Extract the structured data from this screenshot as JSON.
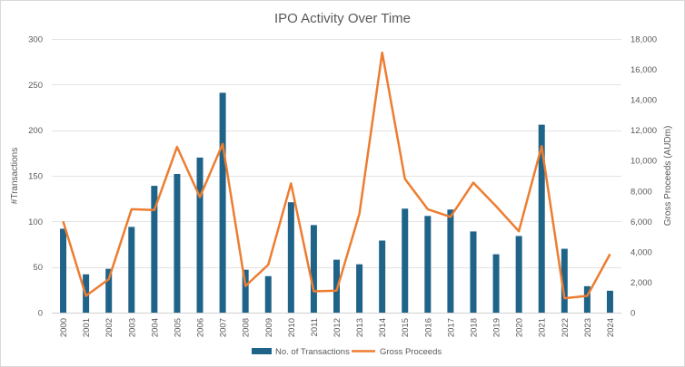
{
  "chart_data": {
    "type": "bar+line",
    "title": "IPO Activity Over Time",
    "categories": [
      "2000",
      "2001",
      "2002",
      "2003",
      "2004",
      "2005",
      "2006",
      "2007",
      "2008",
      "2009",
      "2010",
      "2011",
      "2012",
      "2013",
      "2014",
      "2015",
      "2016",
      "2017",
      "2018",
      "2019",
      "2020",
      "2021",
      "2022",
      "2023",
      "2024"
    ],
    "series": [
      {
        "name": "No. of Transactions",
        "type": "bar",
        "axis": "left",
        "color": "#1f6389",
        "values": [
          92,
          42,
          48,
          94,
          139,
          152,
          170,
          241,
          47,
          40,
          121,
          96,
          58,
          53,
          79,
          114,
          106,
          113,
          89,
          64,
          84,
          206,
          70,
          29,
          24
        ]
      },
      {
        "name": "Gross Proceeds",
        "type": "line",
        "axis": "right",
        "color": "#ed7d31",
        "values": [
          6000,
          1100,
          2200,
          6800,
          6750,
          10900,
          7600,
          11100,
          1750,
          3150,
          8500,
          1400,
          1450,
          6500,
          17100,
          8800,
          6800,
          6300,
          8550,
          7000,
          5350,
          10950,
          950,
          1100,
          3850
        ]
      }
    ],
    "y_left": {
      "label": "#Transactions",
      "min": 0,
      "max": 300,
      "ticks": [
        "0",
        "50",
        "100",
        "150",
        "200",
        "250",
        "300"
      ]
    },
    "y_right": {
      "label": "Gross Proceeds (AUDm)",
      "min": 0,
      "max": 18000,
      "ticks": [
        "0",
        "2,000",
        "4,000",
        "6,000",
        "8,000",
        "10,000",
        "12,000",
        "14,000",
        "16,000",
        "18,000"
      ]
    },
    "legend": {
      "position": "bottom",
      "items": [
        "No. of Transactions",
        "Gross Proceeds"
      ]
    },
    "grid": true
  }
}
